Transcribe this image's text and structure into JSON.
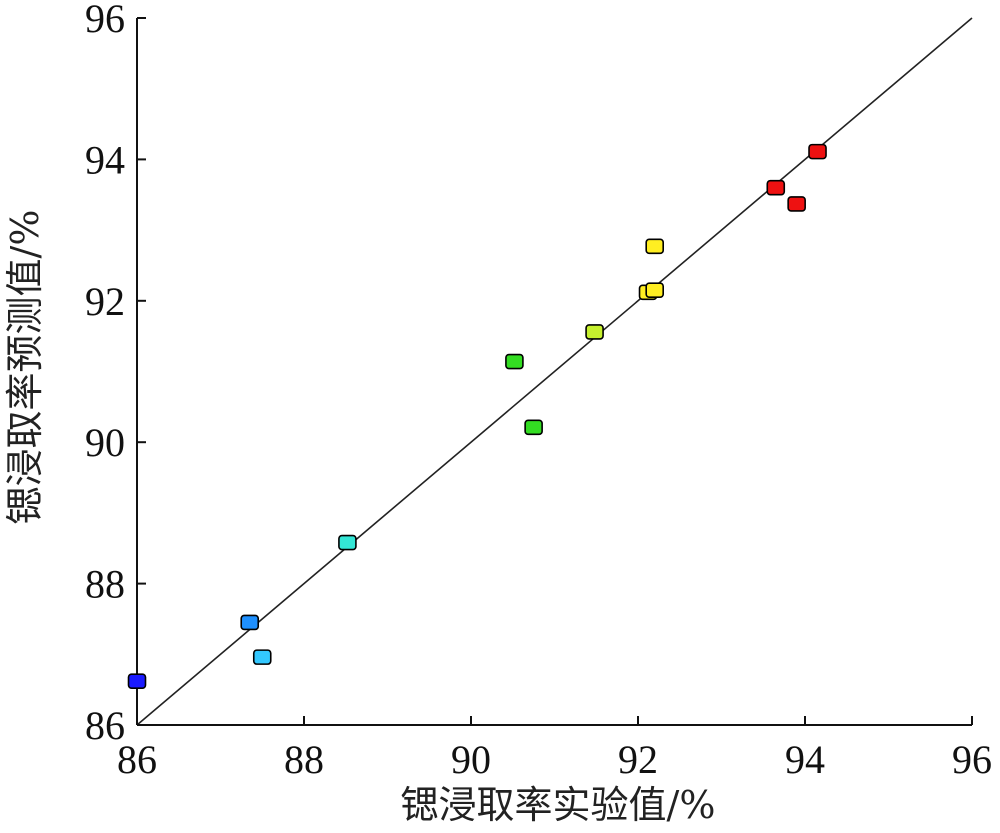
{
  "chart_data": {
    "type": "scatter",
    "title": "",
    "xlabel": "锶浸取率实验值/%",
    "ylabel": "锶浸取率预测值/%",
    "xlim": [
      86,
      96
    ],
    "ylim": [
      86,
      96
    ],
    "xticks": [
      "86",
      "88",
      "90",
      "92",
      "94",
      "96"
    ],
    "yticks": [
      "86",
      "88",
      "90",
      "92",
      "94",
      "96"
    ],
    "grid": false,
    "legend": "none",
    "reference_line": {
      "from": [
        86,
        86
      ],
      "to": [
        96,
        96
      ]
    },
    "colormap": [
      "#1a1aff",
      "#1e90ff",
      "#33c8ff",
      "#33e6d6",
      "#33dd22",
      "#c6f02e",
      "#ffee22",
      "#ee1111"
    ],
    "points": [
      {
        "x": 86.0,
        "y": 86.62,
        "color": "#1a1aff"
      },
      {
        "x": 87.35,
        "y": 87.45,
        "color": "#1e90ff"
      },
      {
        "x": 87.5,
        "y": 86.96,
        "color": "#33c8ff"
      },
      {
        "x": 88.52,
        "y": 88.58,
        "color": "#33e6d6"
      },
      {
        "x": 90.52,
        "y": 91.14,
        "color": "#33dd22"
      },
      {
        "x": 90.75,
        "y": 90.21,
        "color": "#33dd22"
      },
      {
        "x": 91.48,
        "y": 91.56,
        "color": "#c6f02e"
      },
      {
        "x": 92.12,
        "y": 92.12,
        "color": "#ffee22"
      },
      {
        "x": 92.2,
        "y": 92.15,
        "color": "#ffee22"
      },
      {
        "x": 92.2,
        "y": 92.77,
        "color": "#ffee22"
      },
      {
        "x": 93.65,
        "y": 93.6,
        "color": "#ee1111"
      },
      {
        "x": 93.9,
        "y": 93.37,
        "color": "#ee1111"
      },
      {
        "x": 94.15,
        "y": 94.11,
        "color": "#ee1111"
      }
    ]
  }
}
